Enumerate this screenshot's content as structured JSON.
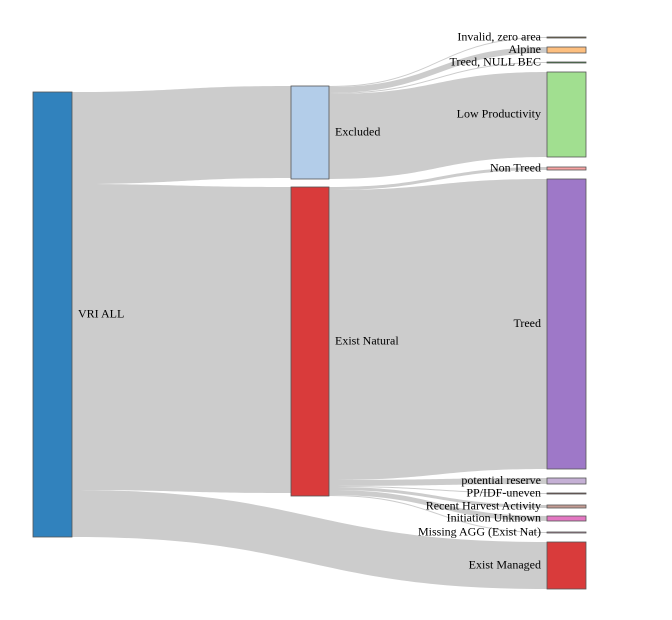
{
  "nodes": [
    {
      "id": "vri_all",
      "label": "VRI ALL",
      "color": "#3182bd"
    },
    {
      "id": "excluded",
      "label": "Excluded",
      "color": "#b3cde9"
    },
    {
      "id": "exist_natural",
      "label": "Exist Natural",
      "color": "#d93b3b"
    },
    {
      "id": "invalid_zero_area",
      "label": "Invalid, zero area",
      "color": "#8c6d31"
    },
    {
      "id": "alpine",
      "label": "Alpine",
      "color": "#fdbf7f"
    },
    {
      "id": "treed_null_bec",
      "label": "Treed, NULL BEC",
      "color": "#2ca02c"
    },
    {
      "id": "low_productivity",
      "label": "Low Productivity",
      "color": "#a1df90"
    },
    {
      "id": "non_treed",
      "label": "Non Treed",
      "color": "#f7a2a2"
    },
    {
      "id": "treed",
      "label": "Treed",
      "color": "#9e78c8"
    },
    {
      "id": "potential_reserve",
      "label": "potential reserve",
      "color": "#c5b0d5"
    },
    {
      "id": "pp_idf_uneven",
      "label": "PP/IDF-uneven",
      "color": "#8c564b"
    },
    {
      "id": "recent_harvest_activity",
      "label": "Recent Harvest Activity",
      "color": "#c49c94"
    },
    {
      "id": "initiation_unknown",
      "label": "Initiation Unknown",
      "color": "#e377c2"
    },
    {
      "id": "missing_agg",
      "label": "Missing AGG (Exist Nat)",
      "color": "#f7b6d2"
    },
    {
      "id": "exist_managed",
      "label": "Exist Managed",
      "color": "#d93b3b"
    }
  ],
  "links": [
    {
      "source": "vri_all",
      "target": "excluded",
      "value": 92
    },
    {
      "source": "vri_all",
      "target": "exist_natural",
      "value": 306
    },
    {
      "source": "vri_all",
      "target": "exist_managed",
      "value": 47
    },
    {
      "source": "excluded",
      "target": "invalid_zero_area",
      "value": 1
    },
    {
      "source": "excluded",
      "target": "alpine",
      "value": 6
    },
    {
      "source": "excluded",
      "target": "treed_null_bec",
      "value": 1
    },
    {
      "source": "excluded",
      "target": "low_productivity",
      "value": 85
    },
    {
      "source": "exist_natural",
      "target": "non_treed",
      "value": 3
    },
    {
      "source": "exist_natural",
      "target": "treed",
      "value": 290
    },
    {
      "source": "exist_natural",
      "target": "potential_reserve",
      "value": 6
    },
    {
      "source": "exist_natural",
      "target": "pp_idf_uneven",
      "value": 1
    },
    {
      "source": "exist_natural",
      "target": "recent_harvest_activity",
      "value": 3
    },
    {
      "source": "exist_natural",
      "target": "initiation_unknown",
      "value": 5
    },
    {
      "source": "exist_natural",
      "target": "missing_agg",
      "value": 1
    }
  ]
}
